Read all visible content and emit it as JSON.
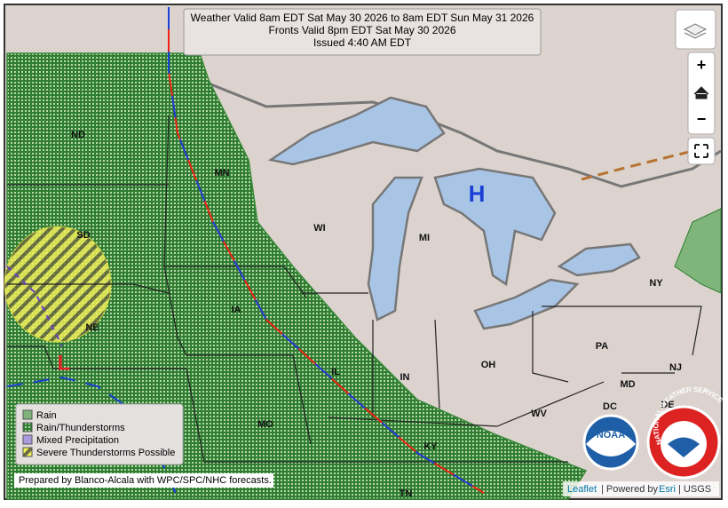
{
  "header": {
    "lines": [
      "Weather Valid 8am EDT Sat May 30 2026 to 8am EDT Sun May 31 2026",
      "Fronts Valid 8pm EDT Sat May 30 2026",
      "Issued 4:40 AM EDT"
    ]
  },
  "controls": {
    "zoom_in": "+",
    "zoom_out": "−"
  },
  "pressure_centers": {
    "high": "H",
    "low": "L"
  },
  "states": [
    "ND",
    "MN",
    "SD",
    "WI",
    "MI",
    "IA",
    "NE",
    "IL",
    "IN",
    "OH",
    "PA",
    "NY",
    "KY",
    "MO",
    "WV",
    "MD",
    "DC",
    "DE",
    "NJ",
    "TN"
  ],
  "legend": [
    "Rain",
    "Rain/Thunderstorms",
    "Mixed Precipitation",
    "Severe Thunderstorms Possible"
  ],
  "credit": "Prepared by Blanco-Alcala with WPC/SPC/NHC forecasts.",
  "attribution": [
    "Leaflet",
    "| Powered by",
    "Esri",
    "| USGS"
  ],
  "logos": {
    "noaa": "NOAA",
    "nws": "NATIONAL WEATHER SERVICE"
  }
}
